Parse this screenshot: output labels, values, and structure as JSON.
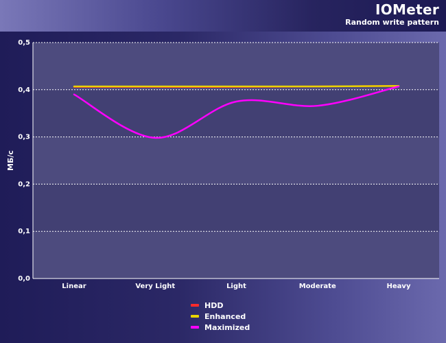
{
  "chart_data": {
    "type": "line",
    "title": "IOMeter",
    "subtitle": "Random write pattern",
    "xlabel": "",
    "ylabel": "МБ/с",
    "categories": [
      "Linear",
      "Very Light",
      "Light",
      "Moderate",
      "Heavy"
    ],
    "ylim": [
      0,
      0.5
    ],
    "yticks": [
      "0,0",
      "0,1",
      "0,2",
      "0,3",
      "0,4",
      "0,5"
    ],
    "yticks_values": [
      0,
      0.1,
      0.2,
      0.3,
      0.4,
      0.5
    ],
    "grid": true,
    "legend_position": "bottom-center",
    "series": [
      {
        "name": "HDD",
        "values": [
          0.406,
          0.406,
          0.406,
          0.407,
          0.408
        ],
        "color": "#ff2a2a"
      },
      {
        "name": "Enhanced",
        "values": [
          0.407,
          0.407,
          0.407,
          0.407,
          0.408
        ],
        "color": "#e8d400"
      },
      {
        "name": "Maximized",
        "values": [
          0.39,
          0.298,
          0.375,
          0.366,
          0.407
        ],
        "color": "#ff00ff"
      }
    ]
  }
}
